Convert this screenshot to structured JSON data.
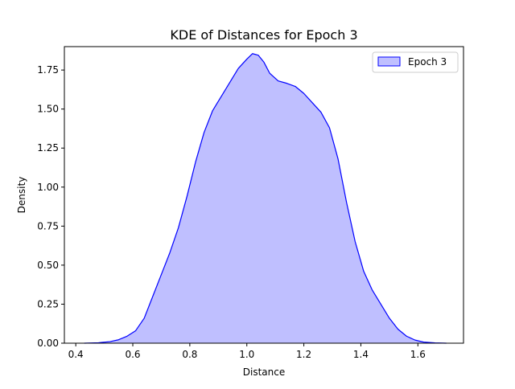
{
  "chart_data": {
    "type": "area",
    "title": "KDE of Distances for Epoch 3",
    "xlabel": "Distance",
    "ylabel": "Density",
    "xlim": [
      0.36,
      1.76
    ],
    "ylim": [
      0.0,
      1.9
    ],
    "xticks": [
      0.4,
      0.6,
      0.8,
      1.0,
      1.2,
      1.4,
      1.6
    ],
    "xtick_labels": [
      "0.4",
      "0.6",
      "0.8",
      "1.0",
      "1.2",
      "1.4",
      "1.6"
    ],
    "yticks": [
      0.0,
      0.25,
      0.5,
      0.75,
      1.0,
      1.25,
      1.5,
      1.75
    ],
    "ytick_labels": [
      "0.00",
      "0.25",
      "0.50",
      "0.75",
      "1.00",
      "1.25",
      "1.50",
      "1.75"
    ],
    "grid": false,
    "legend_position": "top-right",
    "series": [
      {
        "name": "Epoch 3",
        "line_color": "#0000ff",
        "fill_color": "#bfbfff",
        "x": [
          0.43,
          0.48,
          0.52,
          0.55,
          0.58,
          0.61,
          0.64,
          0.67,
          0.7,
          0.73,
          0.76,
          0.79,
          0.82,
          0.85,
          0.88,
          0.91,
          0.94,
          0.97,
          1.0,
          1.02,
          1.04,
          1.06,
          1.08,
          1.11,
          1.14,
          1.17,
          1.2,
          1.23,
          1.26,
          1.29,
          1.32,
          1.35,
          1.38,
          1.41,
          1.44,
          1.47,
          1.5,
          1.53,
          1.56,
          1.59,
          1.62,
          1.66,
          1.7
        ],
        "y": [
          0.0,
          0.003,
          0.01,
          0.022,
          0.045,
          0.08,
          0.16,
          0.3,
          0.44,
          0.58,
          0.74,
          0.94,
          1.16,
          1.35,
          1.49,
          1.58,
          1.67,
          1.76,
          1.82,
          1.855,
          1.845,
          1.8,
          1.73,
          1.68,
          1.665,
          1.645,
          1.6,
          1.54,
          1.48,
          1.38,
          1.18,
          0.9,
          0.65,
          0.46,
          0.34,
          0.25,
          0.16,
          0.09,
          0.045,
          0.02,
          0.007,
          0.002,
          0.0
        ]
      }
    ]
  }
}
